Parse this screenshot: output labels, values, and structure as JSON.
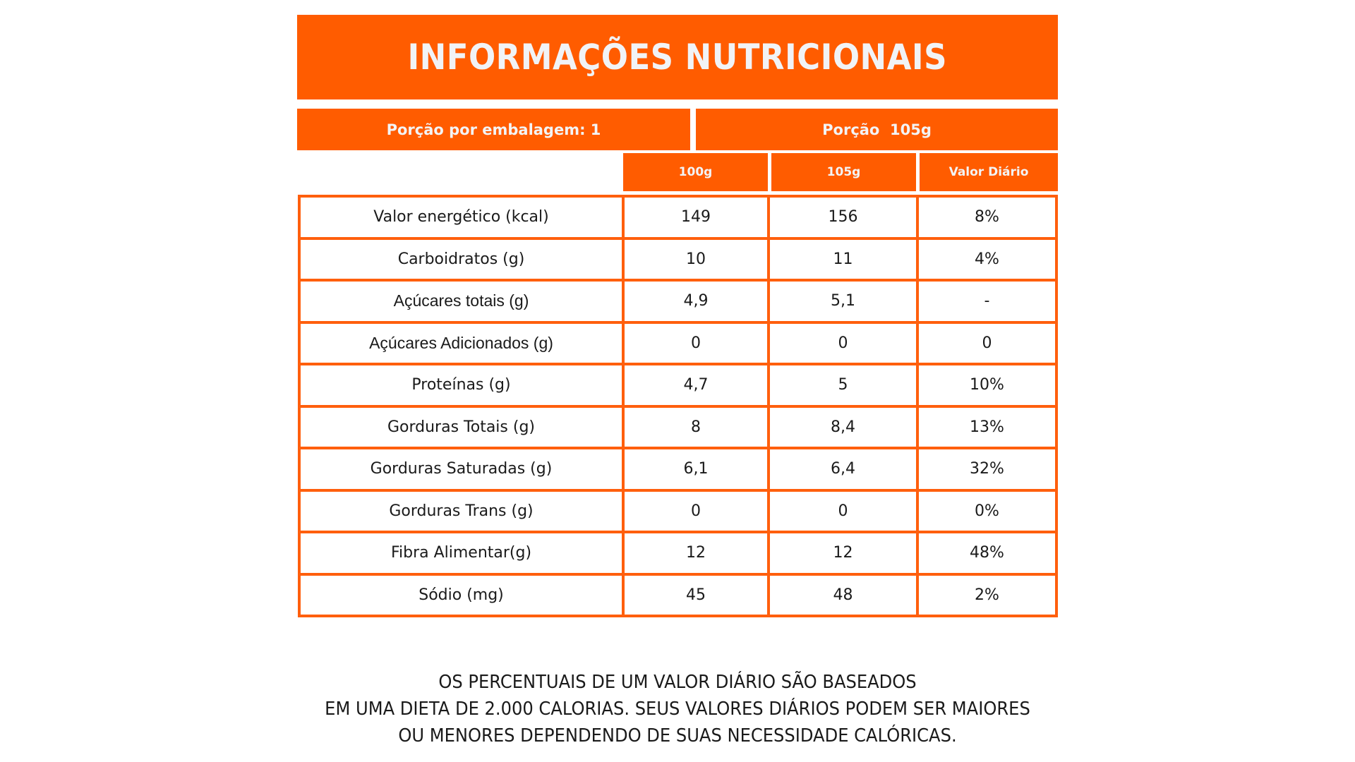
{
  "title": "INFORMAÇÕES NUTRICIONAIS",
  "serving": {
    "per_package": "Porção por embalagem: 1",
    "portion": "Porção  105g"
  },
  "columns": {
    "c100": "100g",
    "c105": "105g",
    "daily": "Valor Diário"
  },
  "rows": [
    {
      "label": "Valor energético (kcal)",
      "v100": "149",
      "v105": "156",
      "vd": "8%"
    },
    {
      "label": "Carboidratos (g)",
      "v100": "10",
      "v105": "11",
      "vd": "4%"
    },
    {
      "label": "Açúcares totais (g)",
      "v100": "4,9",
      "v105": "5,1",
      "vd": "-"
    },
    {
      "label": "Açúcares Adicionados (g)",
      "v100": "0",
      "v105": "0",
      "vd": "0"
    },
    {
      "label": "Proteínas (g)",
      "v100": "4,7",
      "v105": "5",
      "vd": "10%"
    },
    {
      "label": "Gorduras Totais (g)",
      "v100": "8",
      "v105": "8,4",
      "vd": "13%"
    },
    {
      "label": "Gorduras Saturadas (g)",
      "v100": "6,1",
      "v105": "6,4",
      "vd": "32%"
    },
    {
      "label": "Gorduras Trans (g)",
      "v100": "0",
      "v105": "0",
      "vd": "0%"
    },
    {
      "label": "Fibra Alimentar(g)",
      "v100": "12",
      "v105": "12",
      "vd": "48%"
    },
    {
      "label": "Sódio (mg)",
      "v100": "45",
      "v105": "48",
      "vd": "2%"
    }
  ],
  "footer": {
    "lines": [
      "OS PERCENTUAIS DE UM VALOR DIÁRIO SÃO BASEADOS",
      "EM UMA DIETA DE 2.000 CALORIAS. SEUS VALORES DIÁRIOS PODEM SER MAIORES",
      "OU MENORES DEPENDENDO DE SUAS NECESSIDADE CALÓRICAS."
    ]
  },
  "colors": {
    "accent": "#FF5C00",
    "border": "#FF5F0D",
    "header_text": "#F1F3F6",
    "body_text": "#1A1A1A"
  }
}
